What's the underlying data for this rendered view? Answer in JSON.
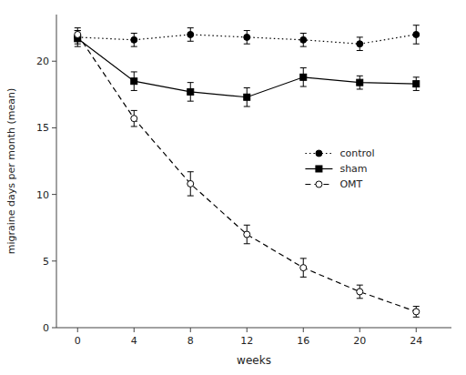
{
  "chart_data": {
    "type": "line",
    "xlabel": "weeks",
    "ylabel": "migraine days per month (mean)",
    "x": [
      0,
      4,
      8,
      12,
      16,
      20,
      24
    ],
    "series": [
      {
        "name": "control",
        "color": "black",
        "marker": "circle",
        "line_style": "dotted",
        "values": [
          21.8,
          21.6,
          22.0,
          21.8,
          21.6,
          21.3,
          22.0
        ],
        "errors": [
          0.5,
          0.5,
          0.5,
          0.5,
          0.5,
          0.5,
          0.7
        ]
      },
      {
        "name": "sham",
        "color": "black",
        "marker": "square",
        "line_style": "solid",
        "values": [
          21.7,
          18.5,
          17.7,
          17.3,
          18.8,
          18.4,
          18.3
        ],
        "errors": [
          0.6,
          0.7,
          0.7,
          0.7,
          0.7,
          0.5,
          0.5
        ]
      },
      {
        "name": "OMT",
        "color": "black",
        "marker": "open-circle",
        "line_style": "dashed",
        "values": [
          22.0,
          15.7,
          10.8,
          7.0,
          4.5,
          2.7,
          1.2
        ],
        "errors": [
          0.5,
          0.6,
          0.9,
          0.7,
          0.7,
          0.5,
          0.4
        ]
      }
    ],
    "xlim": [
      -1.5,
      26.5
    ],
    "ylim": [
      0,
      23.5
    ],
    "xticks": [
      0,
      4,
      8,
      12,
      16,
      20,
      24
    ],
    "yticks": [
      0,
      5,
      10,
      15,
      20
    ],
    "grid": false,
    "legend": "center right"
  }
}
